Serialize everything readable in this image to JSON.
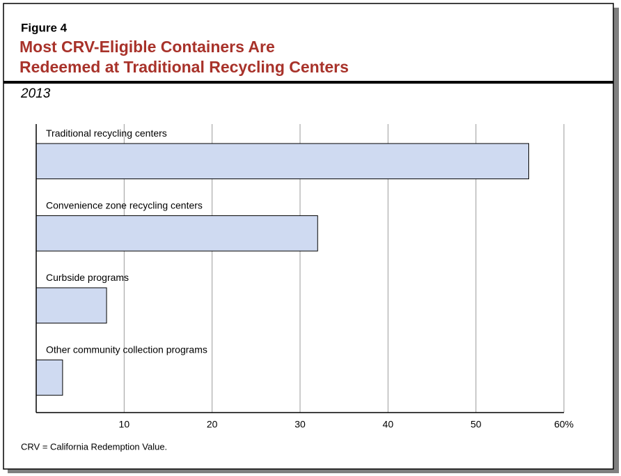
{
  "chart_data": {
    "type": "hbar",
    "figure_label": "Figure 4",
    "title": [
      "Most CRV-Eligible Containers Are",
      "Redeemed at Traditional Recycling Centers"
    ],
    "subtitle": "2013",
    "categories": [
      "Traditional recycling centers",
      "Convenience zone recycling centers",
      "Curbside programs",
      "Other community collection programs"
    ],
    "values": [
      56,
      32,
      8,
      3
    ],
    "color": "#cfdaf1",
    "xlim": [
      0,
      60
    ],
    "xticks": [
      10,
      20,
      30,
      40,
      50,
      {
        "value": 60,
        "label": "60%"
      }
    ],
    "grid": true,
    "note": "CRV = California Redemption Value."
  }
}
